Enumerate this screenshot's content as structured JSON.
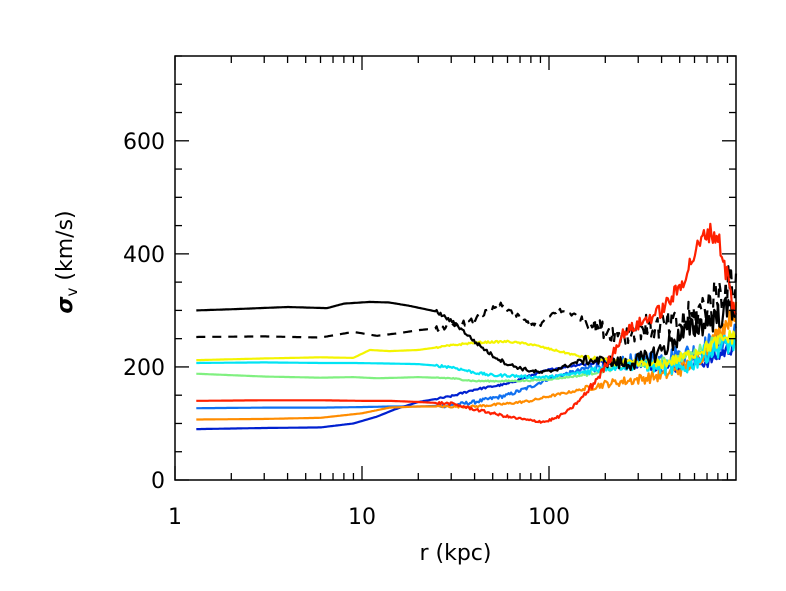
{
  "chart_data": {
    "type": "line",
    "xscale": "log",
    "xlim": [
      1,
      1000
    ],
    "ylim": [
      0,
      750
    ],
    "x_ticks": [
      {
        "value": 1,
        "label": "1"
      },
      {
        "value": 10,
        "label": "10"
      },
      {
        "value": 100,
        "label": "100"
      }
    ],
    "y_ticks": [
      {
        "value": 0,
        "label": "0"
      },
      {
        "value": 200,
        "label": "200"
      },
      {
        "value": 400,
        "label": "400"
      },
      {
        "value": 600,
        "label": "600"
      }
    ],
    "xlabel": "r (kpc)",
    "ylabel": {
      "symbol": "σ",
      "subscript": "v",
      "rest": " (km/s)"
    },
    "grid": false,
    "legend": false,
    "series": [
      {
        "color": "#000000",
        "dash": "solid",
        "x": [
          1.3,
          2,
          4,
          6.5,
          8,
          11,
          14,
          18,
          25,
          32,
          40,
          50,
          60,
          70,
          80,
          90,
          100,
          120,
          150,
          200,
          260,
          330,
          400,
          500,
          600,
          700,
          800,
          900,
          1000
        ],
        "y": [
          300,
          302,
          306,
          304,
          312,
          315,
          314,
          308,
          298,
          275,
          245,
          220,
          205,
          198,
          193,
          190,
          192,
          200,
          212,
          210,
          205,
          215,
          230,
          255,
          270,
          280,
          290,
          300,
          310
        ],
        "noise": 8
      },
      {
        "color": "#000000",
        "dash": "dashed",
        "x": [
          1.3,
          3,
          6,
          9,
          12,
          16,
          20,
          28,
          38,
          48,
          56,
          65,
          75,
          90,
          110,
          130,
          160,
          200,
          250,
          300,
          400,
          500,
          600,
          700,
          800,
          900,
          1000
        ],
        "y": [
          253,
          254,
          252,
          262,
          255,
          260,
          265,
          270,
          280,
          300,
          310,
          295,
          280,
          275,
          300,
          295,
          280,
          265,
          255,
          270,
          270,
          275,
          290,
          310,
          330,
          340,
          350
        ],
        "noise": 12
      },
      {
        "color": "#f4f400",
        "dash": "solid",
        "x": [
          1.3,
          3,
          6,
          9,
          11,
          14,
          20,
          30,
          40,
          60,
          80,
          100,
          150,
          200,
          300,
          400,
          500,
          600,
          700,
          800,
          900,
          1000
        ],
        "y": [
          212,
          215,
          217,
          216,
          230,
          228,
          230,
          238,
          243,
          245,
          240,
          232,
          218,
          210,
          205,
          205,
          215,
          225,
          235,
          245,
          252,
          255
        ],
        "noise": 4
      },
      {
        "color": "#00e4f4",
        "dash": "solid",
        "x": [
          1.3,
          3,
          6,
          9,
          14,
          20,
          30,
          40,
          50,
          60,
          80,
          100,
          150,
          200,
          300,
          400,
          500,
          600,
          700,
          800,
          900,
          1000
        ],
        "y": [
          207,
          208,
          207,
          207,
          206,
          205,
          200,
          190,
          185,
          185,
          182,
          182,
          190,
          200,
          205,
          200,
          195,
          210,
          225,
          235,
          240,
          245
        ],
        "noise": 6
      },
      {
        "color": "#80f080",
        "dash": "solid",
        "x": [
          1.3,
          3,
          6,
          9,
          12,
          16,
          20,
          30,
          40,
          60,
          80,
          100,
          150,
          200,
          300,
          400,
          500,
          600,
          700,
          800,
          900,
          1000
        ],
        "y": [
          188,
          183,
          181,
          182,
          180,
          181,
          182,
          180,
          175,
          175,
          176,
          178,
          185,
          195,
          205,
          210,
          215,
          225,
          240,
          250,
          250,
          245
        ],
        "noise": 3
      },
      {
        "color": "#ff2000",
        "dash": "solid",
        "x": [
          1.3,
          3,
          6,
          10,
          14,
          20,
          30,
          40,
          60,
          80,
          95,
          110,
          130,
          160,
          200,
          250,
          300,
          400,
          500,
          600,
          700,
          800,
          900,
          1000
        ],
        "y": [
          140,
          141,
          141,
          140,
          140,
          138,
          135,
          125,
          112,
          105,
          103,
          110,
          125,
          155,
          200,
          260,
          275,
          300,
          340,
          400,
          440,
          430,
          360,
          280
        ],
        "noise": 6
      },
      {
        "color": "#1070f0",
        "dash": "solid",
        "x": [
          1.3,
          3,
          6,
          10,
          14,
          20,
          30,
          40,
          60,
          80,
          100,
          150,
          200,
          300,
          400,
          500,
          600,
          700,
          800,
          900,
          1000
        ],
        "y": [
          127,
          128,
          128,
          129,
          130,
          130,
          132,
          138,
          150,
          165,
          180,
          195,
          205,
          210,
          215,
          220,
          225,
          235,
          245,
          250,
          255
        ],
        "noise": 8
      },
      {
        "color": "#ff8c00",
        "dash": "solid",
        "x": [
          1.3,
          3,
          6,
          10,
          14,
          20,
          30,
          40,
          60,
          80,
          100,
          150,
          200,
          300,
          400,
          500,
          600,
          700,
          800,
          900,
          1000
        ],
        "y": [
          107,
          108,
          110,
          118,
          128,
          130,
          130,
          130,
          135,
          140,
          148,
          160,
          170,
          178,
          185,
          195,
          210,
          230,
          260,
          280,
          300
        ],
        "noise": 5
      },
      {
        "color": "#0020d0",
        "dash": "solid",
        "x": [
          1.3,
          3,
          6,
          9,
          12,
          15,
          20,
          30,
          40,
          60,
          80,
          100,
          150,
          200,
          300,
          400,
          500,
          600,
          700,
          800,
          900,
          1000
        ],
        "y": [
          90,
          92,
          93,
          100,
          112,
          125,
          138,
          148,
          160,
          170,
          185,
          195,
          205,
          210,
          205,
          200,
          200,
          205,
          210,
          220,
          230,
          240
        ],
        "noise": 4
      }
    ]
  }
}
